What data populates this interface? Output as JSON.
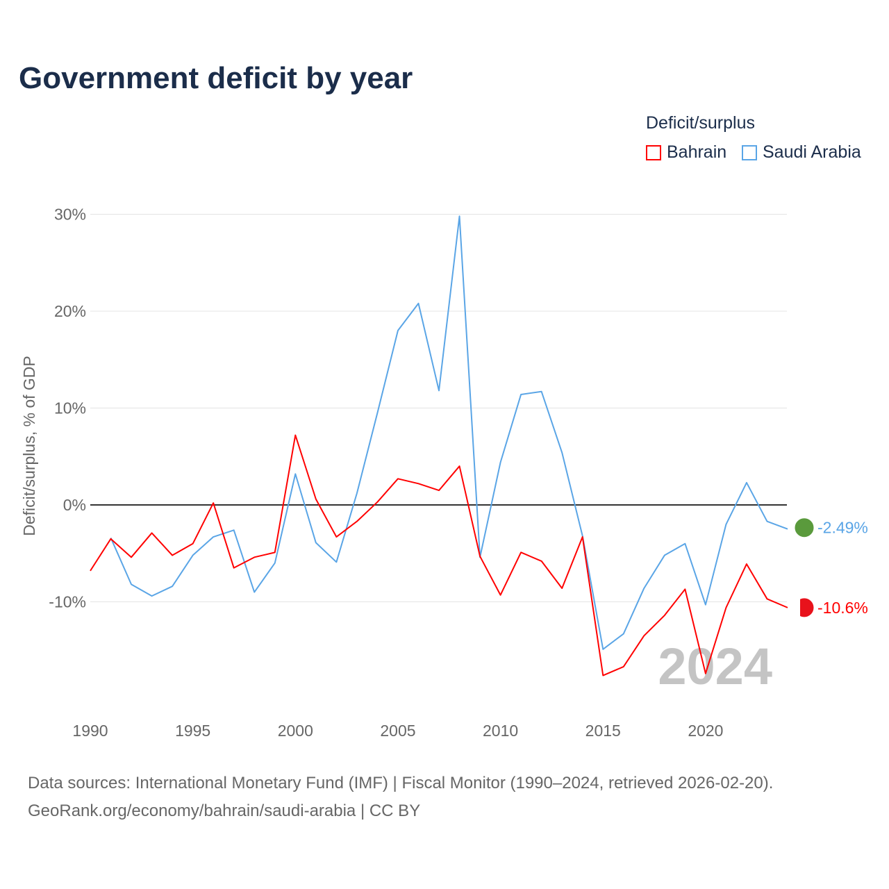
{
  "chart_data": {
    "type": "line",
    "title": "Government deficit by year",
    "ylabel": "Deficit/surplus, % of GDP",
    "xlabel": "",
    "legend_title": "Deficit/surplus",
    "legend_position": "top-right",
    "ylim": [
      -20,
      30
    ],
    "xlim": [
      1990,
      2024
    ],
    "yticks": [
      30,
      20,
      10,
      0,
      -10
    ],
    "ytick_labels": [
      "30%",
      "20%",
      "10%",
      "0%",
      "-10%"
    ],
    "xticks": [
      "1990",
      "1995",
      "2000",
      "2005",
      "2010",
      "2015",
      "2020"
    ],
    "watermark_year": "2024",
    "grid": true,
    "series": [
      {
        "name": "Bahrain",
        "color": "#ff0000",
        "end_label": "-10.6%",
        "x": [
          1990,
          1991,
          1992,
          1993,
          1994,
          1995,
          1996,
          1997,
          1998,
          1999,
          2000,
          2001,
          2002,
          2003,
          2004,
          2005,
          2006,
          2007,
          2008,
          2009,
          2010,
          2011,
          2012,
          2013,
          2014,
          2015,
          2016,
          2017,
          2018,
          2019,
          2020,
          2021,
          2022,
          2023,
          2024
        ],
        "values": [
          -6.8,
          -3.5,
          -5.4,
          -2.9,
          -5.2,
          -4.0,
          0.2,
          -6.5,
          -5.4,
          -4.9,
          7.2,
          0.6,
          -3.3,
          -1.7,
          0.3,
          2.7,
          2.2,
          1.5,
          4.0,
          -5.3,
          -9.3,
          -4.9,
          -5.8,
          -8.6,
          -3.3,
          -17.6,
          -16.7,
          -13.5,
          -11.4,
          -8.7,
          -17.4,
          -10.6,
          -6.1,
          -9.7,
          -10.6
        ]
      },
      {
        "name": "Saudi Arabia",
        "color": "#5aa5e6",
        "end_label": "-2.49%",
        "x": [
          1991,
          1992,
          1993,
          1994,
          1995,
          1996,
          1997,
          1998,
          1999,
          2000,
          2001,
          2002,
          2003,
          2004,
          2005,
          2006,
          2007,
          2008,
          2009,
          2010,
          2011,
          2012,
          2013,
          2014,
          2015,
          2016,
          2017,
          2018,
          2019,
          2020,
          2021,
          2022,
          2023,
          2024
        ],
        "values": [
          -3.4,
          -8.2,
          -9.4,
          -8.4,
          -5.2,
          -3.3,
          -2.6,
          -9.0,
          -6.0,
          3.2,
          -3.9,
          -5.9,
          1.2,
          9.5,
          18.0,
          20.8,
          11.8,
          29.8,
          -5.4,
          4.4,
          11.4,
          11.7,
          5.4,
          -3.2,
          -14.9,
          -13.3,
          -8.6,
          -5.2,
          -4.0,
          -10.3,
          -2.0,
          2.3,
          -1.7,
          -2.49
        ]
      }
    ]
  },
  "source_line1": "Data sources: International Monetary Fund (IMF) | Fiscal Monitor (1990–2024, retrieved 2026-02-20).",
  "source_line2": "GeoRank.org/economy/bahrain/saudi-arabia | CC BY"
}
